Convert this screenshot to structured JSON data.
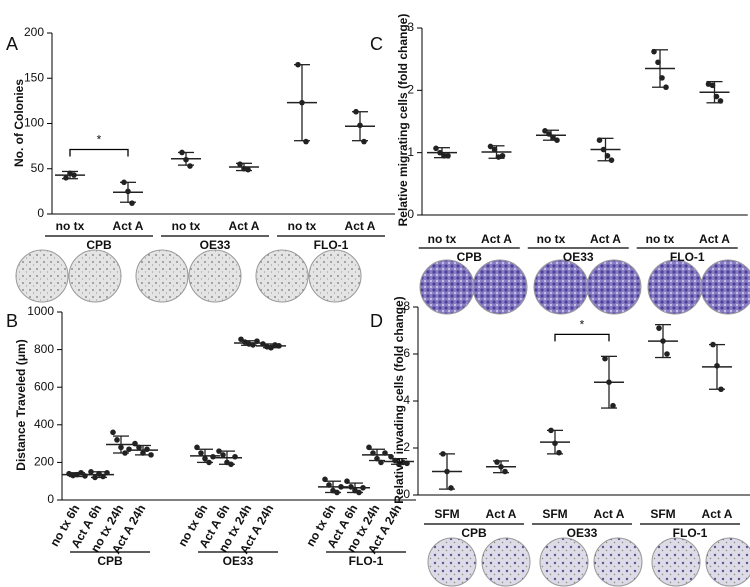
{
  "chart_data": [
    {
      "type": "dot",
      "label": "A",
      "ylabel": "No. of Colonies",
      "categories": [
        "no tx",
        "Act A",
        "no tx",
        "Act A",
        "no tx",
        "Act A"
      ],
      "groups": [
        "CPB",
        "OE33",
        "FLO-1"
      ],
      "points": [
        [
          40,
          45,
          43
        ],
        [
          35,
          25,
          12
        ],
        [
          68,
          60,
          53
        ],
        [
          55,
          50,
          49
        ],
        [
          165,
          123,
          80
        ],
        [
          113,
          98,
          80
        ]
      ],
      "means": [
        43,
        24,
        61,
        52,
        123,
        97
      ],
      "errors": [
        4,
        11,
        7,
        4,
        42,
        16
      ],
      "ylim": [
        0,
        200
      ],
      "yticks": [
        0,
        50,
        100,
        150,
        200
      ],
      "annotations": [
        {
          "text": "*",
          "between": [
            0,
            1
          ]
        }
      ],
      "color": "#222222"
    },
    {
      "type": "dot",
      "label": "B",
      "ylabel": "Distance Traveled (μm)",
      "categories": [
        "no tx 6h",
        "Act A 6h",
        "no tx 24h",
        "Act A 24h",
        "no tx 6h",
        "Act A 6h",
        "no tx 24h",
        "Act A 24h",
        "no tx 6h",
        "Act A 6h",
        "no tx 24h",
        "Act A 24h"
      ],
      "groups": [
        "CPB",
        "OE33",
        "FLO-1"
      ],
      "points": [
        [
          140,
          130,
          135,
          145,
          128
        ],
        [
          150,
          120,
          140,
          125,
          145
        ],
        [
          360,
          320,
          280,
          250,
          270
        ],
        [
          300,
          280,
          250,
          270,
          240
        ],
        [
          280,
          250,
          220,
          200,
          230
        ],
        [
          260,
          240,
          200,
          190,
          230
        ],
        [
          855,
          840,
          830,
          825,
          845
        ],
        [
          830,
          815,
          810,
          825,
          820
        ],
        [
          110,
          80,
          50,
          40,
          70
        ],
        [
          100,
          70,
          50,
          40,
          65
        ],
        [
          280,
          250,
          220,
          200,
          250
        ],
        [
          230,
          210,
          190,
          200,
          195
        ]
      ],
      "means": [
        135,
        135,
        295,
        265,
        235,
        225,
        835,
        820,
        70,
        65,
        240,
        205
      ],
      "errors": [
        10,
        15,
        45,
        25,
        35,
        35,
        12,
        10,
        30,
        25,
        30,
        15
      ],
      "ylim": [
        0,
        1000
      ],
      "yticks": [
        0,
        200,
        400,
        600,
        800,
        1000
      ],
      "color": "#222222"
    },
    {
      "type": "dot",
      "label": "C",
      "ylabel": "Relative migrating cells (fold change)",
      "categories": [
        "no tx",
        "Act A",
        "no tx",
        "Act A",
        "no tx",
        "Act A"
      ],
      "groups": [
        "CPB",
        "OE33",
        "FLO-1"
      ],
      "points": [
        [
          1.07,
          1.0,
          0.95,
          0.95
        ],
        [
          1.1,
          1.05,
          0.93,
          0.95
        ],
        [
          1.35,
          1.3,
          1.25,
          1.2
        ],
        [
          1.2,
          1.05,
          0.95,
          0.88
        ],
        [
          2.62,
          2.45,
          2.2,
          2.05
        ],
        [
          2.1,
          2.08,
          1.9,
          1.83
        ]
      ],
      "means": [
        1.0,
        1.01,
        1.28,
        1.05,
        2.35,
        1.97
      ],
      "errors": [
        0.08,
        0.1,
        0.08,
        0.18,
        0.3,
        0.17
      ],
      "ylim": [
        0,
        3
      ],
      "yticks": [
        0,
        1,
        2,
        3
      ],
      "color": "#222222"
    },
    {
      "type": "dot",
      "label": "D",
      "ylabel": "Relative invading cells (fold change)",
      "categories": [
        "SFM",
        "Act A",
        "SFM",
        "Act A",
        "SFM",
        "Act A"
      ],
      "groups": [
        "CPB",
        "OE33",
        "FLO-1"
      ],
      "points": [
        [
          1.75,
          1.0,
          0.3
        ],
        [
          1.4,
          1.2,
          1.0
        ],
        [
          2.75,
          2.2,
          1.8
        ],
        [
          5.8,
          4.8,
          3.8
        ],
        [
          7.1,
          6.55,
          6.0
        ],
        [
          6.4,
          5.5,
          4.5
        ]
      ],
      "means": [
        1.0,
        1.2,
        2.25,
        4.8,
        6.55,
        5.45
      ],
      "errors": [
        0.75,
        0.25,
        0.5,
        1.1,
        0.7,
        0.95
      ],
      "ylim": [
        0,
        8
      ],
      "yticks": [
        0,
        2,
        4,
        6,
        8
      ],
      "annotations": [
        {
          "text": "*",
          "between": [
            2,
            3
          ]
        }
      ],
      "color": "#222222"
    }
  ]
}
